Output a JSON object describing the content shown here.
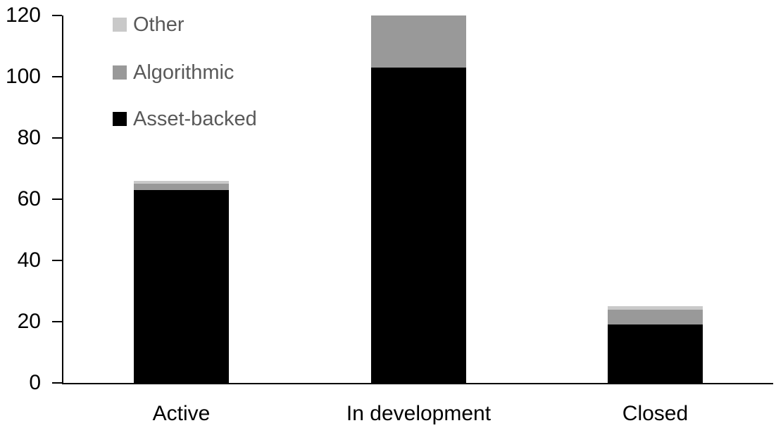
{
  "chart_data": {
    "type": "bar",
    "stacked": true,
    "title": "",
    "xlabel": "",
    "ylabel": "",
    "categories": [
      "Active",
      "In development",
      "Closed"
    ],
    "series": [
      {
        "name": "Asset-backed",
        "color": "#000000",
        "values": [
          63,
          103,
          19
        ]
      },
      {
        "name": "Algorithmic",
        "color": "#999999",
        "values": [
          2,
          17,
          5
        ]
      },
      {
        "name": "Other",
        "color": "#c9c9c9",
        "values": [
          1,
          0,
          1
        ]
      }
    ],
    "totals": [
      66,
      120,
      25
    ],
    "ylim": [
      0,
      120
    ],
    "yticks": [
      0,
      20,
      40,
      60,
      80,
      100,
      120
    ],
    "grid": false,
    "legend_position": "top-left",
    "legend_order": [
      "Other",
      "Algorithmic",
      "Asset-backed"
    ],
    "colors": {
      "axis": "#000000",
      "tick_label": "#000000",
      "legend_text": "#595959",
      "background": "#ffffff"
    }
  }
}
